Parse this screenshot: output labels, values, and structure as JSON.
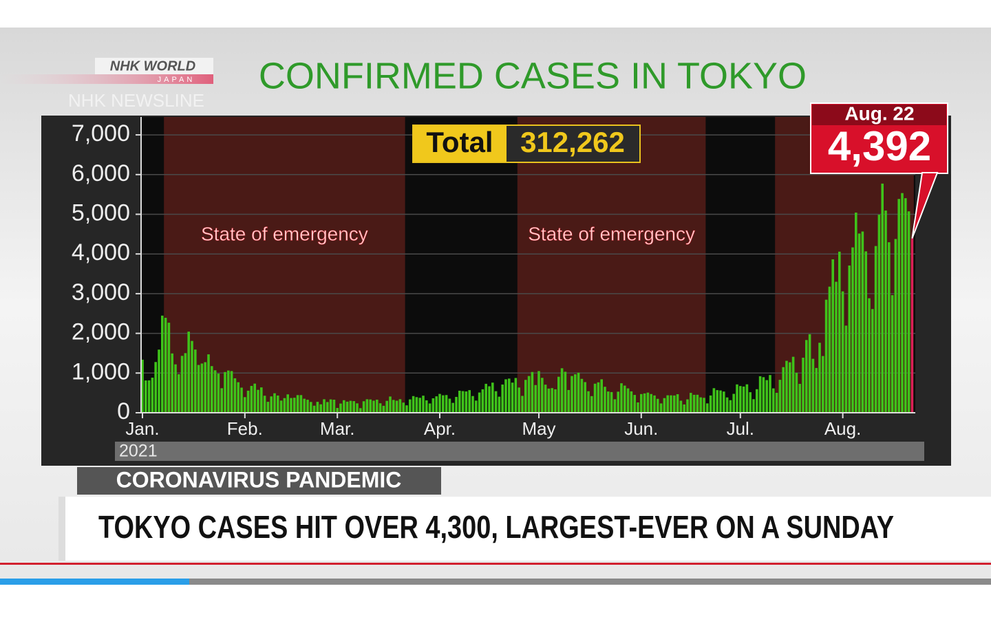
{
  "brand": {
    "name": "NHK WORLD",
    "sub": "JAPAN",
    "program": "NHK NEWSLINE"
  },
  "chart_data": {
    "type": "bar",
    "title": "CONFIRMED CASES IN TOKYO",
    "total": {
      "label": "Total",
      "value": 312262,
      "value_label": "312,262"
    },
    "highlight": {
      "label": "Aug. 22",
      "value_label": "4,392"
    },
    "categories": [
      "Jan.",
      null,
      null,
      null,
      null,
      null,
      null,
      null,
      null,
      null,
      null,
      null,
      null,
      null,
      null,
      null,
      null,
      null,
      null,
      null,
      null,
      null,
      null,
      null,
      null,
      null,
      null,
      null,
      null,
      null,
      null,
      "Feb.",
      null,
      null,
      null,
      null,
      null,
      null,
      null,
      null,
      null,
      null,
      null,
      null,
      null,
      null,
      null,
      null,
      null,
      null,
      null,
      null,
      null,
      null,
      null,
      null,
      null,
      null,
      null,
      "Mar.",
      null,
      null,
      null,
      null,
      null,
      null,
      null,
      null,
      null,
      null,
      null,
      null,
      null,
      null,
      null,
      null,
      null,
      null,
      null,
      null,
      null,
      null,
      null,
      null,
      null,
      null,
      null,
      null,
      null,
      null,
      "Apr.",
      null,
      null,
      null,
      null,
      null,
      null,
      null,
      null,
      null,
      null,
      null,
      null,
      null,
      null,
      null,
      null,
      null,
      null,
      null,
      null,
      null,
      null,
      null,
      null,
      null,
      null,
      null,
      null,
      null,
      "May",
      null,
      null,
      null,
      null,
      null,
      null,
      null,
      null,
      null,
      null,
      null,
      null,
      null,
      null,
      null,
      null,
      null,
      null,
      null,
      null,
      null,
      null,
      null,
      null,
      null,
      null,
      null,
      null,
      null,
      null,
      "Jun.",
      null,
      null,
      null,
      null,
      null,
      null,
      null,
      null,
      null,
      null,
      null,
      null,
      null,
      null,
      null,
      null,
      null,
      null,
      null,
      null,
      null,
      null,
      null,
      null,
      null,
      null,
      null,
      null,
      null,
      "Jul.",
      null,
      null,
      null,
      null,
      null,
      null,
      null,
      null,
      null,
      null,
      null,
      null,
      null,
      null,
      null,
      null,
      null,
      null,
      null,
      null,
      null,
      null,
      null,
      null,
      null,
      null,
      null,
      null,
      null,
      null,
      "Aug.",
      null,
      null,
      null,
      null,
      null,
      null,
      null,
      null,
      null,
      null,
      null,
      null,
      null,
      null,
      null,
      null,
      null,
      null,
      null,
      null,
      null
    ],
    "year_label": "2021",
    "values": [
      1337,
      814,
      816,
      884,
      1278,
      1591,
      2447,
      2392,
      2268,
      1494,
      1219,
      970,
      1433,
      1502,
      2044,
      1809,
      1592,
      1204,
      1240,
      1274,
      1471,
      1175,
      1070,
      986,
      618,
      1026,
      1064,
      1050,
      868,
      769,
      633,
      393,
      556,
      676,
      734,
      577,
      639,
      429,
      276,
      412,
      491,
      434,
      307,
      369,
      463,
      371,
      378,
      445,
      445,
      353,
      327,
      272,
      178,
      275,
      213,
      340,
      270,
      337,
      329,
      121,
      232,
      316,
      279,
      301,
      293,
      237,
      116,
      290,
      340,
      335,
      304,
      330,
      239,
      175,
      300,
      409,
      323,
      303,
      342,
      256,
      187,
      337,
      420,
      394,
      376,
      430,
      313,
      234,
      364,
      414,
      475,
      440,
      446,
      355,
      249,
      399,
      555,
      545,
      537,
      570,
      421,
      306,
      510,
      591,
      729,
      667,
      759,
      543,
      405,
      711,
      843,
      861,
      759,
      876,
      635,
      425,
      828,
      925,
      1027,
      698,
      1050,
      879,
      708,
      609,
      621,
      591,
      907,
      1121,
      1032,
      573,
      925,
      969,
      1010,
      854,
      772,
      542,
      419,
      732,
      766,
      843,
      654,
      535,
      521,
      340,
      531,
      743,
      684,
      614,
      539,
      449,
      260,
      471,
      487,
      508,
      472,
      436,
      351,
      235,
      369,
      440,
      439,
      435,
      467,
      304,
      209,
      337,
      501,
      452,
      453,
      388,
      376,
      236,
      435,
      619,
      570,
      562,
      534,
      386,
      317,
      476,
      714,
      673,
      660,
      716,
      518,
      342,
      593,
      920,
      896,
      822,
      950,
      614,
      502,
      830,
      1149,
      1308,
      1271,
      1410,
      1008,
      727,
      1387,
      1832,
      1979,
      1359,
      1128,
      1763,
      1429,
      2848,
      3177,
      3865,
      3300,
      4058,
      3058,
      2195,
      3709,
      4166,
      5042,
      4515,
      4566,
      4066,
      2884,
      2612,
      4200,
      4989,
      5773,
      5094,
      4295,
      2962,
      4377,
      5386,
      5534,
      5405,
      5074,
      4392
    ],
    "color": "#3fc21a",
    "highlight_color": "#e0205a",
    "shaded_ranges": [
      {
        "start": 7,
        "end": 79,
        "label": "State of emergency"
      },
      {
        "start": 114,
        "end": 170,
        "label": "State of emergency"
      },
      {
        "start": 192,
        "end": 233
      }
    ],
    "shade_color": "#4a1a16",
    "ylim": [
      0,
      7400
    ],
    "yticks": [
      0,
      {
        "value": 1000,
        "label": "1,000"
      },
      {
        "value": 2000,
        "label": "2,000"
      },
      {
        "value": 3000,
        "label": "3,000"
      },
      {
        "value": 4000,
        "label": "4,000"
      },
      {
        "value": 5000,
        "label": "5,000"
      },
      {
        "value": 6000,
        "label": "6,000"
      },
      {
        "value": 7000,
        "label": "7,000"
      }
    ],
    "grid": true
  },
  "banner": {
    "topic": "CORONAVIRUS PANDEMIC",
    "headline": "TOKYO CASES HIT OVER 4,300, LARGEST-EVER ON A SUNDAY"
  }
}
